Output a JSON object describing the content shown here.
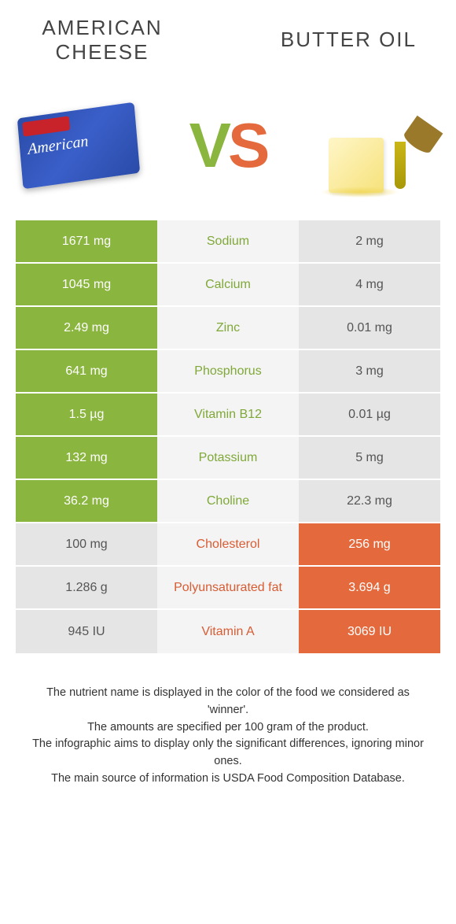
{
  "header": {
    "left_title": "AMERICAN CHEESE",
    "right_title": "BUTTER OIL",
    "vs_v": "V",
    "vs_s": "S"
  },
  "colors": {
    "green": "#8ab53e",
    "orange": "#e46a3d",
    "gray_bg": "#e5e5e5",
    "gray_txt": "#555555",
    "mid_bg": "#f4f4f4",
    "txt_green": "#7fa838",
    "txt_orange": "#d85c33"
  },
  "rows": [
    {
      "left": "1671 mg",
      "name": "Sodium",
      "right": "2 mg",
      "winner": "left"
    },
    {
      "left": "1045 mg",
      "name": "Calcium",
      "right": "4 mg",
      "winner": "left"
    },
    {
      "left": "2.49 mg",
      "name": "Zinc",
      "right": "0.01 mg",
      "winner": "left"
    },
    {
      "left": "641 mg",
      "name": "Phosphorus",
      "right": "3 mg",
      "winner": "left"
    },
    {
      "left": "1.5 µg",
      "name": "Vitamin B12",
      "right": "0.01 µg",
      "winner": "left"
    },
    {
      "left": "132 mg",
      "name": "Potassium",
      "right": "5 mg",
      "winner": "left"
    },
    {
      "left": "36.2 mg",
      "name": "Choline",
      "right": "22.3 mg",
      "winner": "left"
    },
    {
      "left": "100 mg",
      "name": "Cholesterol",
      "right": "256 mg",
      "winner": "right"
    },
    {
      "left": "1.286 g",
      "name": "Polyunsaturated fat",
      "right": "3.694 g",
      "winner": "right"
    },
    {
      "left": "945 IU",
      "name": "Vitamin A",
      "right": "3069 IU",
      "winner": "right"
    }
  ],
  "footer": {
    "line1": "The nutrient name is displayed in the color of the food we considered as 'winner'.",
    "line2": "The amounts are specified per 100 gram of the product.",
    "line3": "The infographic aims to display only the significant differences, ignoring minor ones.",
    "line4": "The main source of information is USDA Food Composition Database."
  }
}
